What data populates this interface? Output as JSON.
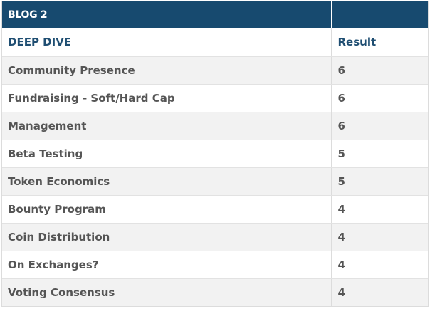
{
  "table": {
    "banner": {
      "title": "BLOG 2",
      "right": ""
    },
    "headers": {
      "criteria": "DEEP DIVE",
      "result": "Result"
    },
    "rows": [
      {
        "criteria": "Community Presence",
        "result": "6"
      },
      {
        "criteria": "Fundraising - Soft/Hard Cap",
        "result": "6"
      },
      {
        "criteria": "Management",
        "result": "6"
      },
      {
        "criteria": "Beta Testing",
        "result": "5"
      },
      {
        "criteria": "Token Economics",
        "result": "5"
      },
      {
        "criteria": "Bounty Program",
        "result": "4"
      },
      {
        "criteria": "Coin Distribution",
        "result": "4"
      },
      {
        "criteria": "On Exchanges?",
        "result": "4"
      },
      {
        "criteria": "Voting Consensus",
        "result": "4"
      }
    ],
    "colors": {
      "banner_bg": "#174a6f",
      "header_text": "#1f4e72",
      "row_text": "#555555",
      "row_stripe": "#f2f2f2"
    }
  }
}
